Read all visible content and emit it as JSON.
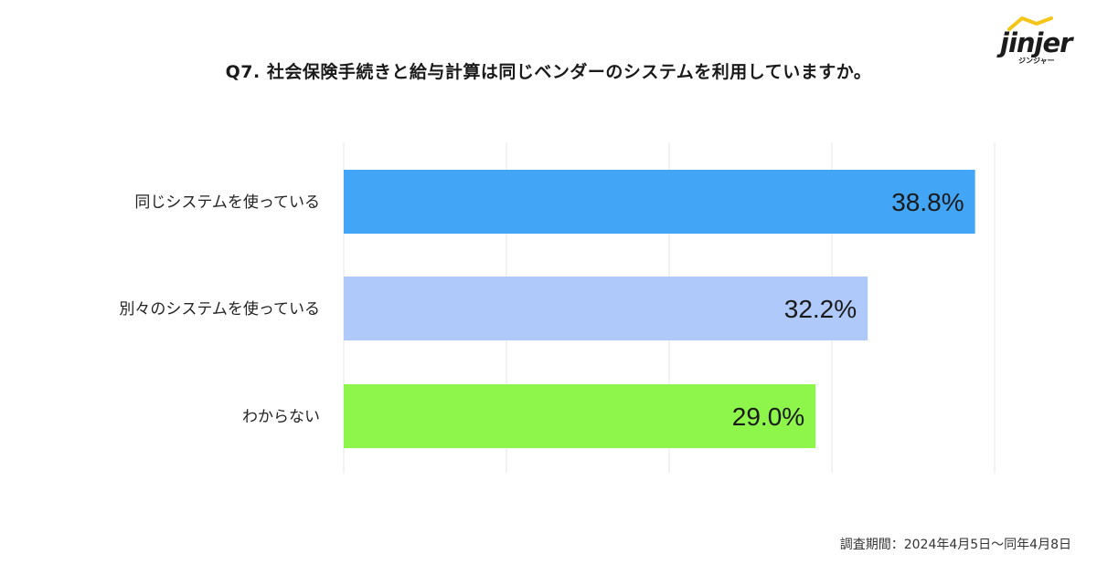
{
  "logo": {
    "name": "jinjer",
    "sub": "ジンジャー",
    "accent_color": "#f5c518"
  },
  "chart_data": {
    "type": "bar",
    "orientation": "horizontal",
    "title": "Q7. 社会保険手続きと給与計算は同じベンダーのシステムを利用していますか。",
    "categories": [
      "同じシステムを使っている",
      "別々のシステムを使っている",
      "わからない"
    ],
    "values": [
      38.8,
      32.2,
      29.0
    ],
    "value_labels": [
      "38.8%",
      "32.2%",
      "29.0%"
    ],
    "colors": [
      "#42a5f5",
      "#b0c9fb",
      "#8ef54a"
    ],
    "xlim": [
      0,
      40
    ],
    "grid": true,
    "legend": "none"
  },
  "footer": {
    "note": "調査期間：2024年4月5日〜同年4月8日"
  }
}
